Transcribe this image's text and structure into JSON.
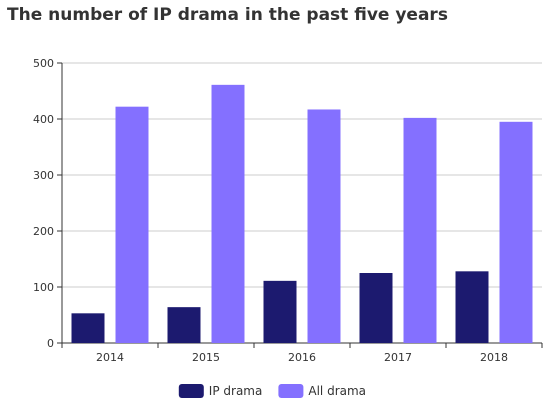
{
  "chart_data": {
    "type": "bar",
    "title": "The number of IP drama in the past five years",
    "xlabel": "",
    "ylabel": "",
    "categories": [
      "2014",
      "2015",
      "2016",
      "2017",
      "2018"
    ],
    "ylim": [
      0,
      500
    ],
    "yticks": [
      0,
      100,
      200,
      300,
      400,
      500
    ],
    "grid": true,
    "legend_position": "bottom",
    "series": [
      {
        "name": "IP drama",
        "color": "#1c1a6f",
        "values": [
          53,
          64,
          111,
          125,
          128
        ]
      },
      {
        "name": "All drama",
        "color": "#8470ff",
        "values": [
          422,
          461,
          417,
          402,
          395
        ]
      }
    ]
  }
}
